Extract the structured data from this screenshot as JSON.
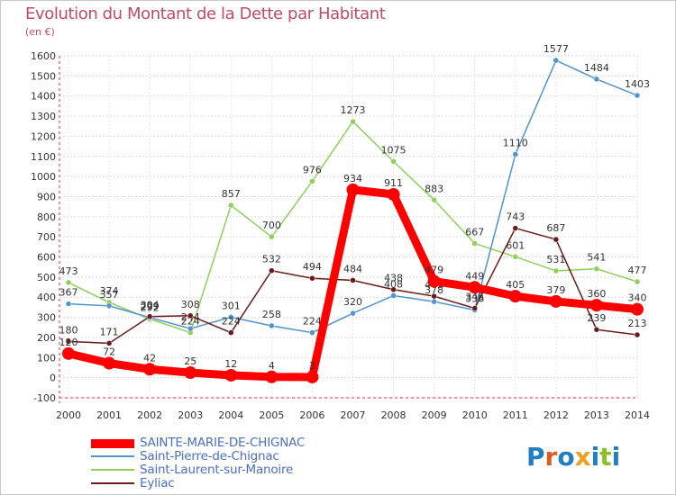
{
  "header": {
    "title": "Evolution du Montant de la Dette par Habitant",
    "subtitle": "(en €)"
  },
  "legend": {
    "items": [
      {
        "label": "SAINTE-MARIE-DE-CHIGNAC",
        "color": "#ff0000"
      },
      {
        "label": "Saint-Pierre-de-Chignac",
        "color": "#4f94cf"
      },
      {
        "label": "Saint-Laurent-sur-Manoire",
        "color": "#8ed05a"
      },
      {
        "label": "Eyliac",
        "color": "#6a1a1a"
      }
    ]
  },
  "logo": {
    "text": "Proxiti",
    "colors": [
      "#1f7ec4",
      "#e05a1e",
      "#1f7ec4",
      "#f0a020",
      "#1f7ec4",
      "#8cbf2a",
      "#1f7ec4"
    ]
  },
  "chart_data": {
    "type": "line",
    "x": [
      2000,
      2001,
      2002,
      2003,
      2004,
      2005,
      2006,
      2007,
      2008,
      2009,
      2010,
      2011,
      2012,
      2013,
      2014
    ],
    "ylim": [
      -100,
      1600
    ],
    "yticks": [
      -100,
      0,
      100,
      200,
      300,
      400,
      500,
      600,
      700,
      800,
      900,
      1000,
      1100,
      1200,
      1300,
      1400,
      1500,
      1600
    ],
    "grid": true,
    "series": [
      {
        "name": "Saint-Laurent-sur-Manoire",
        "color": "#8ed05a",
        "values": [
          473,
          374,
          292,
          224,
          857,
          700,
          976,
          1273,
          1075,
          883,
          667,
          601,
          531,
          541,
          477
        ],
        "labels": [
          "473",
          "374",
          "292",
          "224",
          "857",
          "700",
          "976",
          "1273",
          "1075",
          "883",
          "667",
          "601",
          "531",
          "541",
          "477"
        ]
      },
      {
        "name": "Saint-Pierre-de-Chignac",
        "color": "#4f94cf",
        "values": [
          367,
          357,
          299,
          244,
          301,
          258,
          224,
          320,
          408,
          378,
          336,
          1110,
          1577,
          1484,
          1403
        ],
        "labels": [
          "367",
          "357",
          "299",
          "244",
          "301",
          "258",
          "224",
          "320",
          "408",
          "378",
          "336",
          "1110",
          "1577",
          "1484",
          "1403"
        ]
      },
      {
        "name": "Eyliac",
        "color": "#6a1a1a",
        "values": [
          180,
          171,
          304,
          308,
          224,
          532,
          494,
          484,
          438,
          405,
          345,
          743,
          687,
          239,
          213
        ],
        "labels": [
          "180",
          "171",
          "304",
          "308",
          "224",
          "532",
          "494",
          "484",
          "438",
          "405",
          "345",
          "743",
          "687",
          "239",
          "213"
        ]
      },
      {
        "name": "SAINTE-MARIE-DE-CHIGNAC",
        "color": "#ff0000",
        "values": [
          120,
          72,
          42,
          25,
          12,
          4,
          3,
          934,
          911,
          479,
          449,
          405,
          379,
          360,
          340
        ],
        "labels": [
          "120",
          "72",
          "42",
          "25",
          "12",
          "4",
          "3",
          "934",
          "911",
          "479",
          "449",
          "405",
          "379",
          "360",
          "340"
        ]
      }
    ]
  }
}
